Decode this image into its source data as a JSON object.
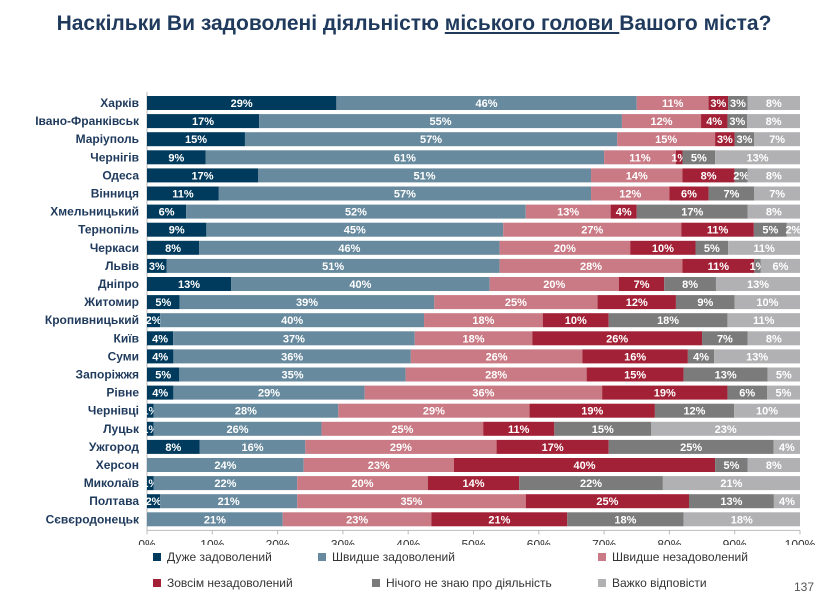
{
  "title": {
    "part1": "Наскільки Ви задоволені діяльністю ",
    "part2": "міського голови ",
    "part3": "Вашого міста?"
  },
  "page_number": "137",
  "chart_data": {
    "type": "bar",
    "orientation": "horizontal",
    "stacked": true,
    "xlim": [
      0,
      100
    ],
    "x_ticks": [
      "0%",
      "10%",
      "20%",
      "30%",
      "40%",
      "50%",
      "60%",
      "70%",
      "80%",
      "90%",
      "100%"
    ],
    "categories": [
      "Харків",
      "Івано-Франківськ",
      "Маріуполь",
      "Чернігів",
      "Одеса",
      "Вінниця",
      "Хмельницький",
      "Тернопіль",
      "Черкаси",
      "Львів",
      "Дніпро",
      "Житомир",
      "Кропивницький",
      "Київ",
      "Суми",
      "Запоріжжя",
      "Рівне",
      "Чернівці",
      "Луцьк",
      "Ужгород",
      "Херсон",
      "Миколаїв",
      "Полтава",
      "Сєвєродонецьк"
    ],
    "series": [
      {
        "name": "Дуже задоволений",
        "color": "#003a5c",
        "values": [
          29,
          17,
          15,
          9,
          17,
          11,
          6,
          9,
          8,
          3,
          13,
          5,
          2,
          4,
          4,
          5,
          4,
          1,
          1,
          8,
          0,
          1,
          2,
          0
        ]
      },
      {
        "name": "Швидше задоволений",
        "color": "#678a9e",
        "values": [
          46,
          55,
          57,
          61,
          51,
          57,
          52,
          45,
          46,
          51,
          40,
          39,
          40,
          37,
          36,
          35,
          29,
          28,
          26,
          16,
          24,
          22,
          21,
          21
        ]
      },
      {
        "name": "Швидше незадоволений",
        "color": "#c97a84",
        "values": [
          11,
          12,
          15,
          11,
          14,
          12,
          13,
          27,
          20,
          28,
          20,
          25,
          18,
          18,
          26,
          28,
          36,
          29,
          25,
          29,
          23,
          20,
          35,
          23
        ]
      },
      {
        "name": "Зовсім незадоволений",
        "color": "#a32136",
        "values": [
          3,
          4,
          3,
          1,
          8,
          6,
          4,
          11,
          10,
          11,
          7,
          12,
          10,
          26,
          16,
          15,
          19,
          19,
          11,
          17,
          40,
          14,
          25,
          21
        ]
      },
      {
        "name": "Нічого не знаю про діяльність",
        "color": "#7b7b7b",
        "values": [
          3,
          3,
          3,
          5,
          2,
          7,
          17,
          5,
          5,
          1,
          8,
          9,
          18,
          7,
          4,
          13,
          6,
          12,
          15,
          25,
          5,
          22,
          13,
          18
        ]
      },
      {
        "name": "Важко відповісти",
        "color": "#b1b1b3",
        "values": [
          8,
          8,
          7,
          13,
          8,
          7,
          8,
          2,
          11,
          6,
          13,
          10,
          11,
          8,
          13,
          5,
          5,
          10,
          23,
          4,
          8,
          21,
          4,
          18
        ]
      }
    ]
  }
}
